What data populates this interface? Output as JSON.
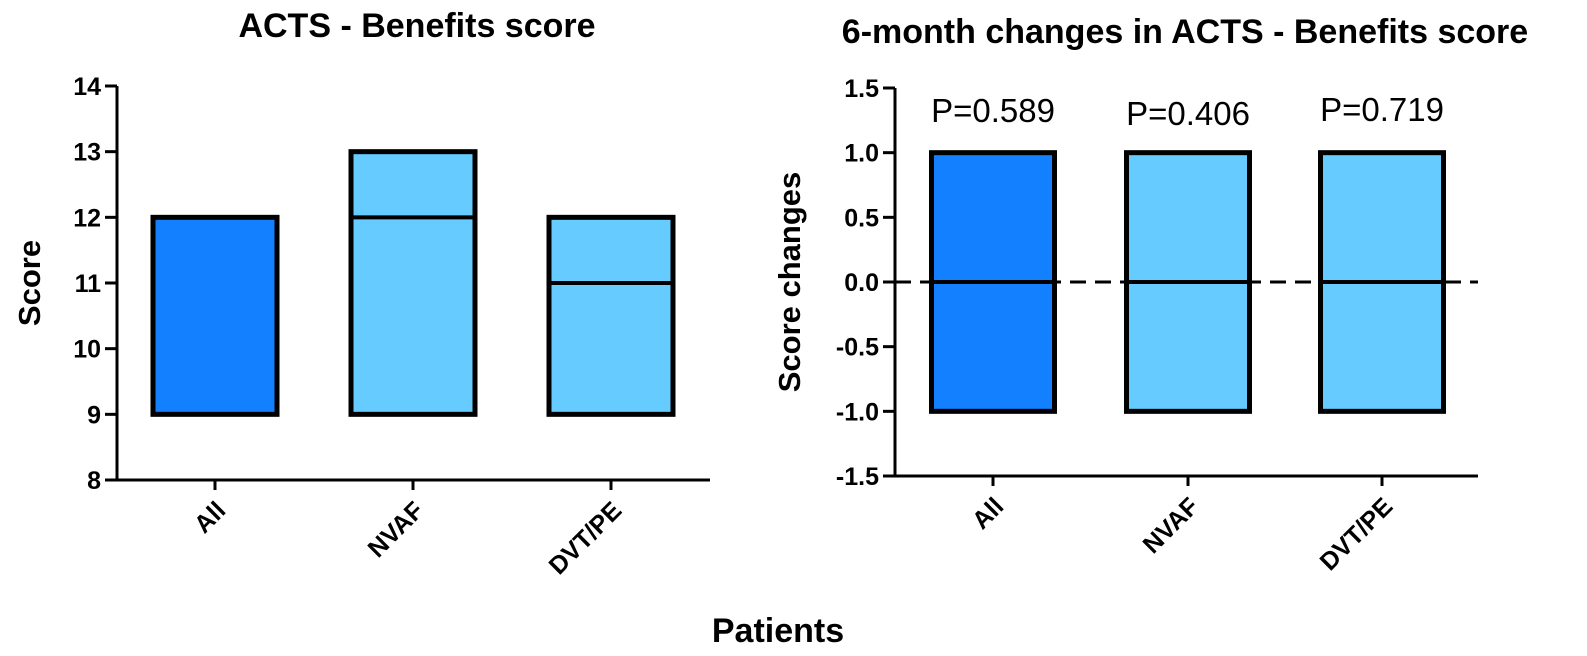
{
  "chart_data": [
    {
      "type": "bar",
      "title": "ACTS - Benefits score",
      "xlabel": "Patients",
      "ylabel": "Score",
      "ylim": [
        8,
        14
      ],
      "yticks": [
        "8",
        "9",
        "10",
        "11",
        "12",
        "13",
        "14"
      ],
      "categories": [
        "All",
        "NVAF",
        "DVT/PE"
      ],
      "bars": [
        {
          "low": 9,
          "high": 12,
          "median": 12,
          "color": "#1380FF"
        },
        {
          "low": 9,
          "high": 13,
          "median": 12,
          "color": "#66CCFF"
        },
        {
          "low": 9,
          "high": 12,
          "median": 11,
          "color": "#66CCFF"
        }
      ],
      "annotations": []
    },
    {
      "type": "bar",
      "title": "6-month changes in ACTS - Benefits score",
      "xlabel": "Patients",
      "ylabel": "Score changes",
      "ylim": [
        -1.5,
        1.5
      ],
      "yticks": [
        "-1.5",
        "-1.0",
        "-0.5",
        "0.0",
        "0.5",
        "1.0",
        "1.5"
      ],
      "categories": [
        "All",
        "NVAF",
        "DVT/PE"
      ],
      "bars": [
        {
          "low": -1,
          "high": 1,
          "median": 0,
          "color": "#1380FF"
        },
        {
          "low": -1,
          "high": 1,
          "median": 0,
          "color": "#66CCFF"
        },
        {
          "low": -1,
          "high": 1,
          "median": 0,
          "color": "#66CCFF"
        }
      ],
      "reference_line": 0,
      "annotations": [
        "P=0.589",
        "P=0.406",
        "P=0.719"
      ]
    }
  ],
  "figure": {
    "xlabel": "Patients"
  }
}
